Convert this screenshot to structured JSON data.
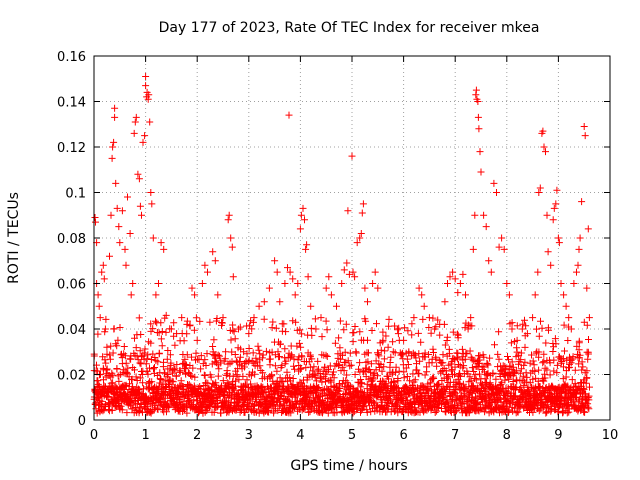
{
  "chart_data": {
    "type": "scatter",
    "title": "Day 177 of 2023, Rate Of TEC Index for receiver mkea",
    "xlabel": "GPS time / hours",
    "ylabel": "ROTI / TECUs",
    "xlim": [
      0,
      10
    ],
    "ylim": [
      0,
      0.16
    ],
    "x_ticks": [
      0,
      1,
      2,
      3,
      4,
      5,
      6,
      7,
      8,
      9,
      10
    ],
    "y_ticks": [
      0,
      0.02,
      0.04,
      0.06,
      0.08,
      0.1,
      0.12,
      0.14,
      0.16
    ],
    "x_tick_labels": [
      "0",
      "1",
      "2",
      "3",
      "4",
      "5",
      "6",
      "7",
      "8",
      "9",
      "10"
    ],
    "y_tick_labels": [
      "0",
      "0.02",
      "0.04",
      "0.06",
      "0.08",
      "0.1",
      "0.12",
      "0.14",
      "0.16"
    ],
    "grid": true,
    "marker": "plus",
    "marker_color": "#ff0000",
    "data_x_range": [
      0,
      9.6
    ],
    "points": [
      [
        0.02,
        0.089
      ],
      [
        0.03,
        0.087
      ],
      [
        0.05,
        0.078
      ],
      [
        0.05,
        0.06
      ],
      [
        0.08,
        0.055
      ],
      [
        0.1,
        0.05
      ],
      [
        0.12,
        0.045
      ],
      [
        0.15,
        0.065
      ],
      [
        0.18,
        0.068
      ],
      [
        0.2,
        0.062
      ],
      [
        0.22,
        0.04
      ],
      [
        0.25,
        0.032
      ],
      [
        0.3,
        0.072
      ],
      [
        0.33,
        0.09
      ],
      [
        0.35,
        0.115
      ],
      [
        0.36,
        0.12
      ],
      [
        0.38,
        0.122
      ],
      [
        0.4,
        0.137
      ],
      [
        0.4,
        0.133
      ],
      [
        0.42,
        0.104
      ],
      [
        0.45,
        0.093
      ],
      [
        0.48,
        0.085
      ],
      [
        0.5,
        0.078
      ],
      [
        0.55,
        0.092
      ],
      [
        0.6,
        0.075
      ],
      [
        0.62,
        0.068
      ],
      [
        0.65,
        0.098
      ],
      [
        0.7,
        0.082
      ],
      [
        0.72,
        0.055
      ],
      [
        0.75,
        0.06
      ],
      [
        0.78,
        0.126
      ],
      [
        0.8,
        0.131
      ],
      [
        0.82,
        0.133
      ],
      [
        0.85,
        0.108
      ],
      [
        0.88,
        0.106
      ],
      [
        0.9,
        0.094
      ],
      [
        0.92,
        0.09
      ],
      [
        0.95,
        0.122
      ],
      [
        0.98,
        0.125
      ],
      [
        1.0,
        0.151
      ],
      [
        1.0,
        0.147
      ],
      [
        1.02,
        0.142
      ],
      [
        1.03,
        0.144
      ],
      [
        1.05,
        0.141
      ],
      [
        1.06,
        0.143
      ],
      [
        1.08,
        0.131
      ],
      [
        1.1,
        0.1
      ],
      [
        1.12,
        0.095
      ],
      [
        1.15,
        0.08
      ],
      [
        1.2,
        0.055
      ],
      [
        1.25,
        0.06
      ],
      [
        1.3,
        0.078
      ],
      [
        1.35,
        0.075
      ],
      [
        1.4,
        0.046
      ],
      [
        1.5,
        0.04
      ],
      [
        1.6,
        0.038
      ],
      [
        1.7,
        0.045
      ],
      [
        1.8,
        0.042
      ],
      [
        1.9,
        0.058
      ],
      [
        1.95,
        0.055
      ],
      [
        2.0,
        0.035
      ],
      [
        2.1,
        0.06
      ],
      [
        2.15,
        0.068
      ],
      [
        2.2,
        0.065
      ],
      [
        2.3,
        0.074
      ],
      [
        2.35,
        0.07
      ],
      [
        2.4,
        0.055
      ],
      [
        2.5,
        0.045
      ],
      [
        2.55,
        0.03
      ],
      [
        2.6,
        0.088
      ],
      [
        2.62,
        0.09
      ],
      [
        2.65,
        0.08
      ],
      [
        2.68,
        0.076
      ],
      [
        2.7,
        0.063
      ],
      [
        2.8,
        0.04
      ],
      [
        2.9,
        0.03
      ],
      [
        3.0,
        0.038
      ],
      [
        3.1,
        0.045
      ],
      [
        3.2,
        0.05
      ],
      [
        3.3,
        0.052
      ],
      [
        3.4,
        0.058
      ],
      [
        3.5,
        0.07
      ],
      [
        3.55,
        0.065
      ],
      [
        3.6,
        0.052
      ],
      [
        3.7,
        0.06
      ],
      [
        3.75,
        0.067
      ],
      [
        3.78,
        0.134
      ],
      [
        3.8,
        0.065
      ],
      [
        3.85,
        0.062
      ],
      [
        3.9,
        0.055
      ],
      [
        3.95,
        0.06
      ],
      [
        4.0,
        0.084
      ],
      [
        4.02,
        0.09
      ],
      [
        4.05,
        0.093
      ],
      [
        4.08,
        0.088
      ],
      [
        4.1,
        0.075
      ],
      [
        4.12,
        0.077
      ],
      [
        4.15,
        0.063
      ],
      [
        4.2,
        0.05
      ],
      [
        4.3,
        0.04
      ],
      [
        4.4,
        0.045
      ],
      [
        4.5,
        0.058
      ],
      [
        4.55,
        0.063
      ],
      [
        4.6,
        0.055
      ],
      [
        4.7,
        0.05
      ],
      [
        4.8,
        0.06
      ],
      [
        4.85,
        0.066
      ],
      [
        4.9,
        0.069
      ],
      [
        4.92,
        0.092
      ],
      [
        4.95,
        0.064
      ],
      [
        5.0,
        0.116
      ],
      [
        5.02,
        0.065
      ],
      [
        5.05,
        0.063
      ],
      [
        5.1,
        0.078
      ],
      [
        5.15,
        0.08
      ],
      [
        5.18,
        0.082
      ],
      [
        5.2,
        0.091
      ],
      [
        5.22,
        0.095
      ],
      [
        5.25,
        0.058
      ],
      [
        5.3,
        0.052
      ],
      [
        5.4,
        0.06
      ],
      [
        5.45,
        0.065
      ],
      [
        5.5,
        0.058
      ],
      [
        5.6,
        0.035
      ],
      [
        5.7,
        0.032
      ],
      [
        5.8,
        0.03
      ],
      [
        5.9,
        0.038
      ],
      [
        6.0,
        0.035
      ],
      [
        6.1,
        0.03
      ],
      [
        6.2,
        0.045
      ],
      [
        6.3,
        0.058
      ],
      [
        6.35,
        0.055
      ],
      [
        6.4,
        0.05
      ],
      [
        6.5,
        0.045
      ],
      [
        6.6,
        0.04
      ],
      [
        6.7,
        0.042
      ],
      [
        6.8,
        0.052
      ],
      [
        6.85,
        0.06
      ],
      [
        6.9,
        0.063
      ],
      [
        6.95,
        0.065
      ],
      [
        7.0,
        0.062
      ],
      [
        7.05,
        0.056
      ],
      [
        7.1,
        0.06
      ],
      [
        7.15,
        0.064
      ],
      [
        7.2,
        0.055
      ],
      [
        7.25,
        0.04
      ],
      [
        7.3,
        0.045
      ],
      [
        7.35,
        0.075
      ],
      [
        7.38,
        0.09
      ],
      [
        7.4,
        0.143
      ],
      [
        7.41,
        0.145
      ],
      [
        7.42,
        0.141
      ],
      [
        7.44,
        0.14
      ],
      [
        7.45,
        0.133
      ],
      [
        7.46,
        0.128
      ],
      [
        7.48,
        0.118
      ],
      [
        7.5,
        0.109
      ],
      [
        7.55,
        0.09
      ],
      [
        7.6,
        0.085
      ],
      [
        7.65,
        0.07
      ],
      [
        7.7,
        0.065
      ],
      [
        7.75,
        0.104
      ],
      [
        7.8,
        0.1
      ],
      [
        7.85,
        0.076
      ],
      [
        7.9,
        0.08
      ],
      [
        7.95,
        0.075
      ],
      [
        8.0,
        0.06
      ],
      [
        8.05,
        0.055
      ],
      [
        8.1,
        0.04
      ],
      [
        8.2,
        0.035
      ],
      [
        8.3,
        0.04
      ],
      [
        8.4,
        0.038
      ],
      [
        8.5,
        0.045
      ],
      [
        8.55,
        0.055
      ],
      [
        8.6,
        0.065
      ],
      [
        8.62,
        0.1
      ],
      [
        8.65,
        0.102
      ],
      [
        8.68,
        0.126
      ],
      [
        8.7,
        0.127
      ],
      [
        8.72,
        0.12
      ],
      [
        8.75,
        0.118
      ],
      [
        8.78,
        0.09
      ],
      [
        8.8,
        0.074
      ],
      [
        8.85,
        0.068
      ],
      [
        8.9,
        0.088
      ],
      [
        8.92,
        0.093
      ],
      [
        8.95,
        0.095
      ],
      [
        8.97,
        0.101
      ],
      [
        9.0,
        0.08
      ],
      [
        9.02,
        0.078
      ],
      [
        9.05,
        0.06
      ],
      [
        9.1,
        0.055
      ],
      [
        9.15,
        0.05
      ],
      [
        9.2,
        0.045
      ],
      [
        9.25,
        0.04
      ],
      [
        9.3,
        0.06
      ],
      [
        9.35,
        0.065
      ],
      [
        9.38,
        0.068
      ],
      [
        9.4,
        0.075
      ],
      [
        9.42,
        0.08
      ],
      [
        9.45,
        0.096
      ],
      [
        9.5,
        0.129
      ],
      [
        9.52,
        0.125
      ],
      [
        9.55,
        0.058
      ],
      [
        9.58,
        0.084
      ],
      [
        9.6,
        0.045
      ]
    ]
  }
}
